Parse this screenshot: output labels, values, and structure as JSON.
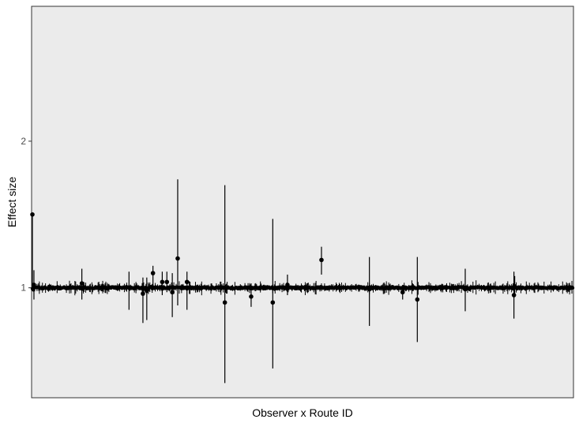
{
  "chart_data": {
    "type": "scatter",
    "subtype": "point-with-errorbars",
    "title": "",
    "xlabel": "Observer x Route ID",
    "ylabel": "Effect size",
    "ylim": [
      0.25,
      2.92
    ],
    "yticks": [
      1,
      2
    ],
    "ytick_labels": [
      "1",
      "2"
    ],
    "x_tick_labels_shown": false,
    "grid": false,
    "legend": "none",
    "panel_color": "#ebebeb",
    "point_color": "#000000",
    "n_points_approx": 700,
    "baseline_value": 1.0,
    "points": [
      {
        "x": 0,
        "y": 1.5,
        "lo": 1.0,
        "hi": 1.5
      },
      {
        "x": 2,
        "y": 1.02,
        "lo": 0.92,
        "hi": 1.12
      },
      {
        "x": 64,
        "y": 1.03,
        "lo": 0.92,
        "hi": 1.13
      },
      {
        "x": 125,
        "y": 1.0,
        "lo": 0.85,
        "hi": 1.11
      },
      {
        "x": 143,
        "y": 0.96,
        "lo": 0.76,
        "hi": 1.07
      },
      {
        "x": 148,
        "y": 0.98,
        "lo": 0.78,
        "hi": 1.07
      },
      {
        "x": 156,
        "y": 1.1,
        "lo": 0.99,
        "hi": 1.15
      },
      {
        "x": 168,
        "y": 1.04,
        "lo": 0.95,
        "hi": 1.11
      },
      {
        "x": 174,
        "y": 1.04,
        "lo": 0.97,
        "hi": 1.11
      },
      {
        "x": 181,
        "y": 0.97,
        "lo": 0.8,
        "hi": 1.1
      },
      {
        "x": 188,
        "y": 1.2,
        "lo": 0.88,
        "hi": 1.74
      },
      {
        "x": 200,
        "y": 1.04,
        "lo": 0.85,
        "hi": 1.11
      },
      {
        "x": 249,
        "y": 0.9,
        "lo": 0.35,
        "hi": 1.7
      },
      {
        "x": 283,
        "y": 0.94,
        "lo": 0.87,
        "hi": 1.03
      },
      {
        "x": 311,
        "y": 0.9,
        "lo": 0.45,
        "hi": 1.47
      },
      {
        "x": 330,
        "y": 1.02,
        "lo": 0.95,
        "hi": 1.09
      },
      {
        "x": 374,
        "y": 1.19,
        "lo": 1.09,
        "hi": 1.28
      },
      {
        "x": 436,
        "y": 0.99,
        "lo": 0.74,
        "hi": 1.21
      },
      {
        "x": 479,
        "y": 0.97,
        "lo": 0.92,
        "hi": 1.02
      },
      {
        "x": 498,
        "y": 0.92,
        "lo": 0.63,
        "hi": 1.21
      },
      {
        "x": 560,
        "y": 0.99,
        "lo": 0.84,
        "hi": 1.13
      },
      {
        "x": 623,
        "y": 0.95,
        "lo": 0.79,
        "hi": 1.11
      },
      {
        "x": 624,
        "y": 1.01,
        "lo": 0.95,
        "hi": 1.08
      }
    ]
  }
}
